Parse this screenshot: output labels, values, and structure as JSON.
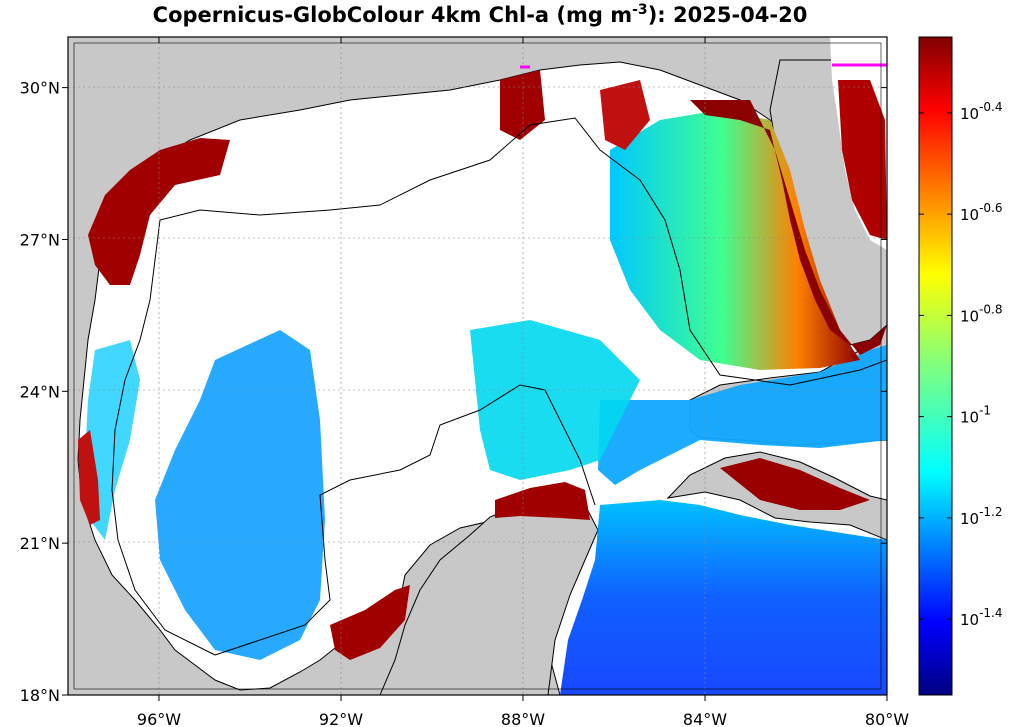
{
  "title": {
    "prefix": "Copernicus-GlobColour 4km Chl-a (mg m",
    "exponent": "-3",
    "suffix": "): 2025-04-20"
  },
  "map": {
    "lon_range": [
      -98,
      -80
    ],
    "lat_range": [
      18,
      31
    ],
    "land_color": "#c8c8c8",
    "nodata_color": "#ffffff",
    "grid": "dotted",
    "lon_ticks": [
      {
        "value": -96,
        "label": "96°W"
      },
      {
        "value": -92,
        "label": "92°W"
      },
      {
        "value": -88,
        "label": "88°W"
      },
      {
        "value": -84,
        "label": "84°W"
      },
      {
        "value": -80,
        "label": "80°W"
      }
    ],
    "lat_ticks": [
      {
        "value": 18,
        "label": "18°N"
      },
      {
        "value": 21,
        "label": "21°N"
      },
      {
        "value": 24,
        "label": "24°N"
      },
      {
        "value": 27,
        "label": "27°N"
      },
      {
        "value": 30,
        "label": "30°N"
      }
    ]
  },
  "colorbar": {
    "scale": "log10",
    "range_log": [
      -1.55,
      -0.25
    ],
    "colormap": "jet",
    "ticks": [
      {
        "value": -0.4,
        "base": "10",
        "exp": "-0.4"
      },
      {
        "value": -0.6,
        "base": "10",
        "exp": "-0.6"
      },
      {
        "value": -0.8,
        "base": "10",
        "exp": "-0.8"
      },
      {
        "value": -1.0,
        "base": "10",
        "exp": "-1"
      },
      {
        "value": -1.2,
        "base": "10",
        "exp": "-1.2"
      },
      {
        "value": -1.4,
        "base": "10",
        "exp": "-1.4"
      }
    ]
  }
}
